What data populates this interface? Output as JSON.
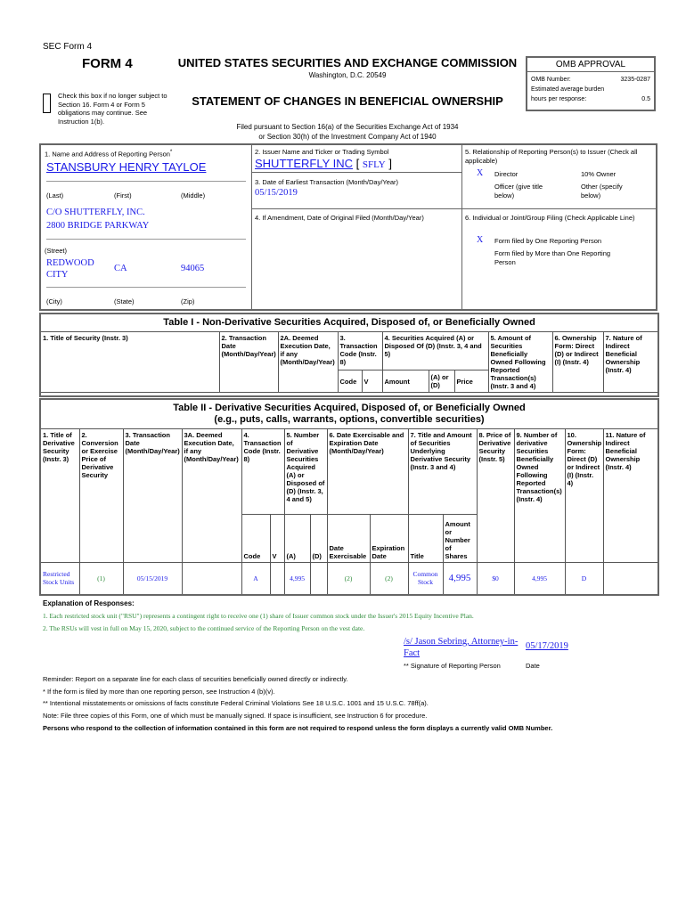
{
  "header": {
    "sec_form": "SEC Form 4",
    "form": "FORM 4",
    "commission": "UNITED STATES SECURITIES AND EXCHANGE COMMISSION",
    "address": "Washington, D.C. 20549",
    "statement": "STATEMENT OF CHANGES IN BENEFICIAL OWNERSHIP",
    "checkbox_text": "Check this box if no longer subject to Section 16. Form 4 or Form 5 obligations may continue. See Instruction 1(b).",
    "filed1": "Filed pursuant to Section 16(a) of the Securities Exchange Act of 1934",
    "filed2": "or Section 30(h) of the Investment Company Act of 1940"
  },
  "omb": {
    "title": "OMB APPROVAL",
    "number_label": "OMB Number:",
    "number": "3235-0287",
    "burden": "Estimated average burden",
    "hours_label": "hours per response:",
    "hours": "0.5"
  },
  "box1": {
    "label": "1. Name and Address of Reporting Person",
    "star": "*",
    "name": "STANSBURY HENRY TAYLOE",
    "last": "(Last)",
    "first": "(First)",
    "middle": "(Middle)",
    "street1": "C/O SHUTTERFLY, INC.",
    "street2": "2800 BRIDGE PARKWAY",
    "street_label": "(Street)",
    "city": "REDWOOD CITY",
    "state": "CA",
    "zip": "94065",
    "city_label": "(City)",
    "state_label": "(State)",
    "zip_label": "(Zip)"
  },
  "box2": {
    "label": "2. Issuer Name and Ticker or Trading Symbol",
    "issuer": "SHUTTERFLY INC",
    "ticker": "SFLY",
    "lb": "[",
    "rb": "]"
  },
  "box3": {
    "label": "3. Date of Earliest Transaction (Month/Day/Year)",
    "date": "05/15/2019"
  },
  "box4": {
    "label": "4. If Amendment, Date of Original Filed (Month/Day/Year)"
  },
  "box5": {
    "label": "5. Relationship of Reporting Person(s) to Issuer (Check all applicable)",
    "mark": "X",
    "director": "Director",
    "owner10": "10% Owner",
    "officer": "Officer (give title below)",
    "other": "Other (specify below)"
  },
  "box6": {
    "label": "6. Individual or Joint/Group Filing (Check Applicable Line)",
    "mark": "X",
    "one": "Form filed by One Reporting Person",
    "more": "Form filed by More than One Reporting Person"
  },
  "table1": {
    "title": "Table I - Non-Derivative Securities Acquired, Disposed of, or Beneficially Owned",
    "cols": [
      "1. Title of Security (Instr. 3)",
      "2. Transaction Date (Month/Day/Year)",
      "2A. Deemed Execution Date, if any (Month/Day/Year)",
      "3. Transaction Code (Instr. 8)",
      "4. Securities Acquired (A) or Disposed Of (D) (Instr. 3, 4 and 5)",
      "5. Amount of Securities Beneficially Owned Following Reported Transaction(s) (Instr. 3 and 4)",
      "6. Ownership Form: Direct (D) or Indirect (I) (Instr. 4)",
      "7. Nature of Indirect Beneficial Ownership (Instr. 4)"
    ],
    "sub": [
      "Code",
      "V",
      "Amount",
      "(A) or (D)",
      "Price"
    ]
  },
  "table2": {
    "title1": "Table II - Derivative Securities Acquired, Disposed of, or Beneficially Owned",
    "title2": "(e.g., puts, calls, warrants, options, convertible securities)",
    "cols": [
      "1. Title of Derivative Security (Instr. 3)",
      "2. Conversion or Exercise Price of Derivative Security",
      "3. Transaction Date (Month/Day/Year)",
      "3A. Deemed Execution Date, if any (Month/Day/Year)",
      "4. Transaction Code (Instr. 8)",
      "5. Number of Derivative Securities Acquired (A) or Disposed of (D) (Instr. 3, 4 and 5)",
      "6. Date Exercisable and Expiration Date (Month/Day/Year)",
      "7. Title and Amount of Securities Underlying Derivative Security (Instr. 3 and 4)",
      "8. Price of Derivative Security (Instr. 5)",
      "9. Number of derivative Securities Beneficially Owned Following Reported Transaction(s) (Instr. 4)",
      "10. Ownership Form: Direct (D) or Indirect (I) (Instr. 4)",
      "11. Nature of Indirect Beneficial Ownership (Instr. 4)"
    ],
    "sub": [
      "Code",
      "V",
      "(A)",
      "(D)",
      "Date Exercisable",
      "Expiration Date",
      "Title",
      "Amount or Number of Shares"
    ],
    "row": {
      "title": "Restricted Stock Units",
      "conv": "(1)",
      "date": "05/15/2019",
      "deemed": "",
      "code": "A",
      "v": "",
      "a": "4,995",
      "d": "",
      "exercisable": "(2)",
      "expiration": "(2)",
      "ul_title": "Common Stock",
      "ul_amount": "4,995",
      "price": "$0",
      "owned": "4,995",
      "form": "D",
      "nature": ""
    }
  },
  "explanation": {
    "title": "Explanation of Responses:",
    "notes": [
      "1. Each restricted stock unit (\"RSU\") represents a contingent right to receive one (1) share of Issuer common stock under the Issuer's 2015 Equity Incentive Plan.",
      "2. The RSUs will vest in full on May 15, 2020, subject to the continued service of the Reporting Person on the vest date."
    ]
  },
  "signature": {
    "name": "/s/ Jason Sebring, Attorney-in-Fact",
    "date": "05/17/2019",
    "sig_label": "** Signature of Reporting Person",
    "date_label": "Date"
  },
  "footer": [
    "Reminder: Report on a separate line for each class of securities beneficially owned directly or indirectly.",
    "* If the form is filed by more than one reporting person, see Instruction 4 (b)(v).",
    "** Intentional misstatements or omissions of facts constitute Federal Criminal Violations See 18 U.S.C. 1001 and 15 U.S.C. 78ff(a).",
    "Note: File three copies of this Form, one of which must be manually signed. If space is insufficient, see Instruction 6 for procedure.",
    "Persons who respond to the collection of information contained in this form are not required to respond unless the form displays a currently valid OMB Number."
  ]
}
